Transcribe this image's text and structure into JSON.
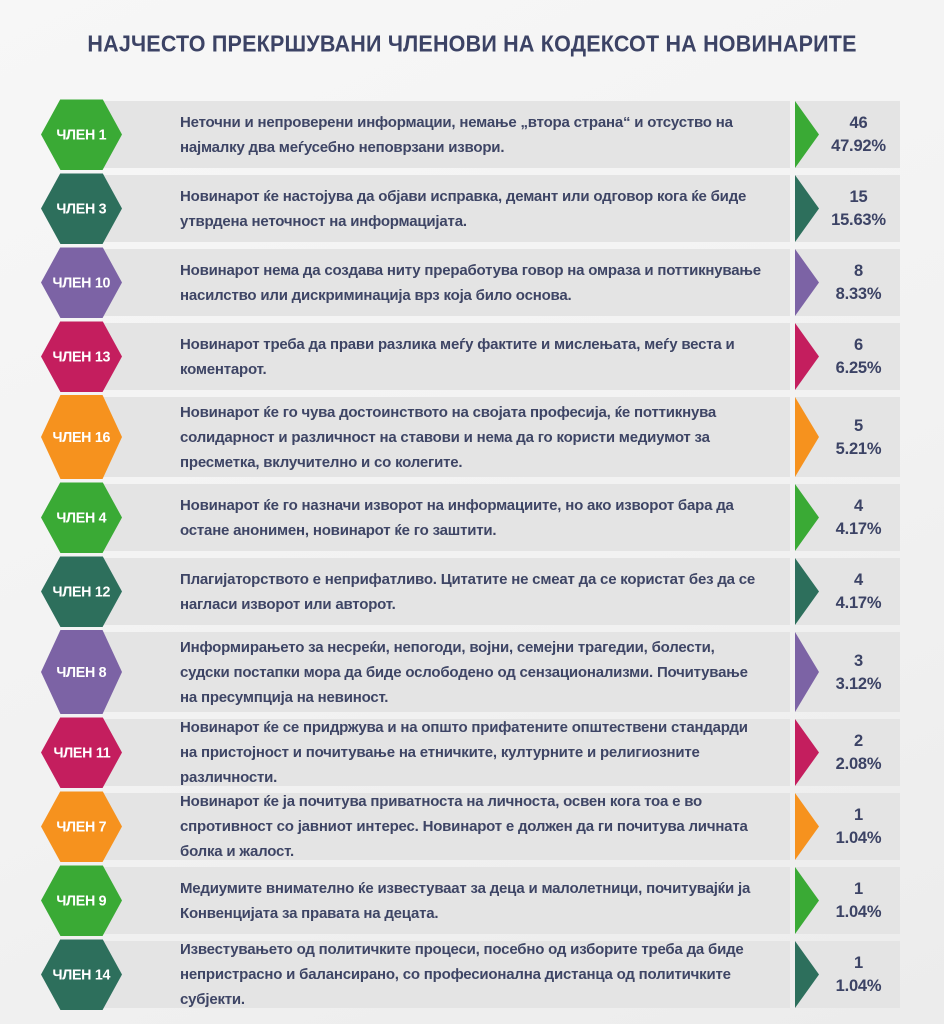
{
  "title": "НАЈЧЕСТО ПРЕКРШУВАНИ ЧЛЕНОВИ НА КОДЕКСОТ НА НОВИНАРИТЕ",
  "colors": {
    "green": "#3aaa35",
    "teal": "#2d6f5c",
    "purple": "#7c63a5",
    "crimson": "#c41e5e",
    "orange": "#f6921e",
    "text_navy": "#3c4365",
    "bar_background": "#e4e4e4",
    "page_background": "#f2f2f2"
  },
  "rows": [
    {
      "label": "ЧЛЕН 1",
      "description": "Неточни и непроверени информации, немање „втора страна“ и отсуство на најмалку два меѓусебно неповрзани извори.",
      "count": "46",
      "percent": "47.92%",
      "color": "#3aaa35",
      "lines": 2
    },
    {
      "label": "ЧЛЕН 3",
      "description": "Новинарот ќе настојува да објави исправка, демант или одговор кога ќе биде утврдена неточност на информацијата.",
      "count": "15",
      "percent": "15.63%",
      "color": "#2d6f5c",
      "lines": 2
    },
    {
      "label": "ЧЛЕН 10",
      "description": "Новинарот нема да создава ниту преработува говор на омраза и поттикнување насилство или дискриминација врз која било основа.",
      "count": "8",
      "percent": "8.33%",
      "color": "#7c63a5",
      "lines": 2
    },
    {
      "label": "ЧЛЕН 13",
      "description": "Новинарот треба да прави разлика меѓу фактите и мислењата, меѓу веста и коментарот.",
      "count": "6",
      "percent": "6.25%",
      "color": "#c41e5e",
      "lines": 2
    },
    {
      "label": "ЧЛЕН 16",
      "description": "Новинарот ќе го чува достоинството на својата професија, ќе поттикнува солидарност и различност на ставови и нема да го користи медиумот за пресметка, вклучително и со колегите.",
      "count": "5",
      "percent": "5.21%",
      "color": "#f6921e",
      "lines": 3
    },
    {
      "label": "ЧЛЕН 4",
      "description": "Новинарот ќе го назначи изворот на информациите, но ако изворот бара да остане анонимен, новинарот ќе го заштити.",
      "count": "4",
      "percent": "4.17%",
      "color": "#3aaa35",
      "lines": 2
    },
    {
      "label": "ЧЛЕН 12",
      "description": "Плагијаторството е неприфатливо. Цитатите не смеат да се користат без да се нагласи изворот или авторот.",
      "count": "4",
      "percent": "4.17%",
      "color": "#2d6f5c",
      "lines": 2
    },
    {
      "label": "ЧЛЕН 8",
      "description": "Информирањето за несреќи, непогоди, војни, семејни трагедии, болести, судски постапки мора да биде ослободено од сензационализми. Почитување на пресумпција на невиност.",
      "count": "3",
      "percent": "3.12%",
      "color": "#7c63a5",
      "lines": 3
    },
    {
      "label": "ЧЛЕН 11",
      "description": "Новинарот ќе се придржува и на општо прифатените општествени стандарди на пристојност и почитување на етничките, културните и религиозните различности.",
      "count": "2",
      "percent": "2.08%",
      "color": "#c41e5e",
      "lines": 2
    },
    {
      "label": "ЧЛЕН 7",
      "description": "Новинарот ќе ја почитува приватноста на личноста, освен кога тоа е во спротивност со јавниот интерес. Новинарот е должен да ги почитува личната болка и жалост.",
      "count": "1",
      "percent": "1.04%",
      "color": "#f6921e",
      "lines": 2
    },
    {
      "label": "ЧЛЕН 9",
      "description": "Медиумите внимателно ќе известуваат за деца и малолетници, почитувајќи ја Конвенцијата за правата на децата.",
      "count": "1",
      "percent": "1.04%",
      "color": "#3aaa35",
      "lines": 2
    },
    {
      "label": "ЧЛЕН 14",
      "description": "Известувањето од политичките процеси, посебно од изборите треба да биде непристрасно и балансирано, со професионална дистанца од политичките субјекти.",
      "count": "1",
      "percent": "1.04%",
      "color": "#2d6f5c",
      "lines": 2
    }
  ],
  "chart_data": {
    "type": "bar",
    "title": "НАЈЧЕСТО ПРЕКРШУВАНИ ЧЛЕНОВИ НА КОДЕКСОТ НА НОВИНАРИТЕ",
    "categories": [
      "ЧЛЕН 1",
      "ЧЛЕН 3",
      "ЧЛЕН 10",
      "ЧЛЕН 13",
      "ЧЛЕН 16",
      "ЧЛЕН 4",
      "ЧЛЕН 12",
      "ЧЛЕН 8",
      "ЧЛЕН 11",
      "ЧЛЕН 7",
      "ЧЛЕН 9",
      "ЧЛЕН 14"
    ],
    "values": [
      46,
      15,
      8,
      6,
      5,
      4,
      4,
      3,
      2,
      1,
      1,
      1
    ],
    "percent_labels": [
      "47.92%",
      "15.63%",
      "8.33%",
      "6.25%",
      "5.21%",
      "4.17%",
      "4.17%",
      "3.12%",
      "2.08%",
      "1.04%",
      "1.04%",
      "1.04%"
    ],
    "xlabel": "",
    "ylabel": "",
    "legend": false,
    "orientation": "horizontal-list"
  }
}
